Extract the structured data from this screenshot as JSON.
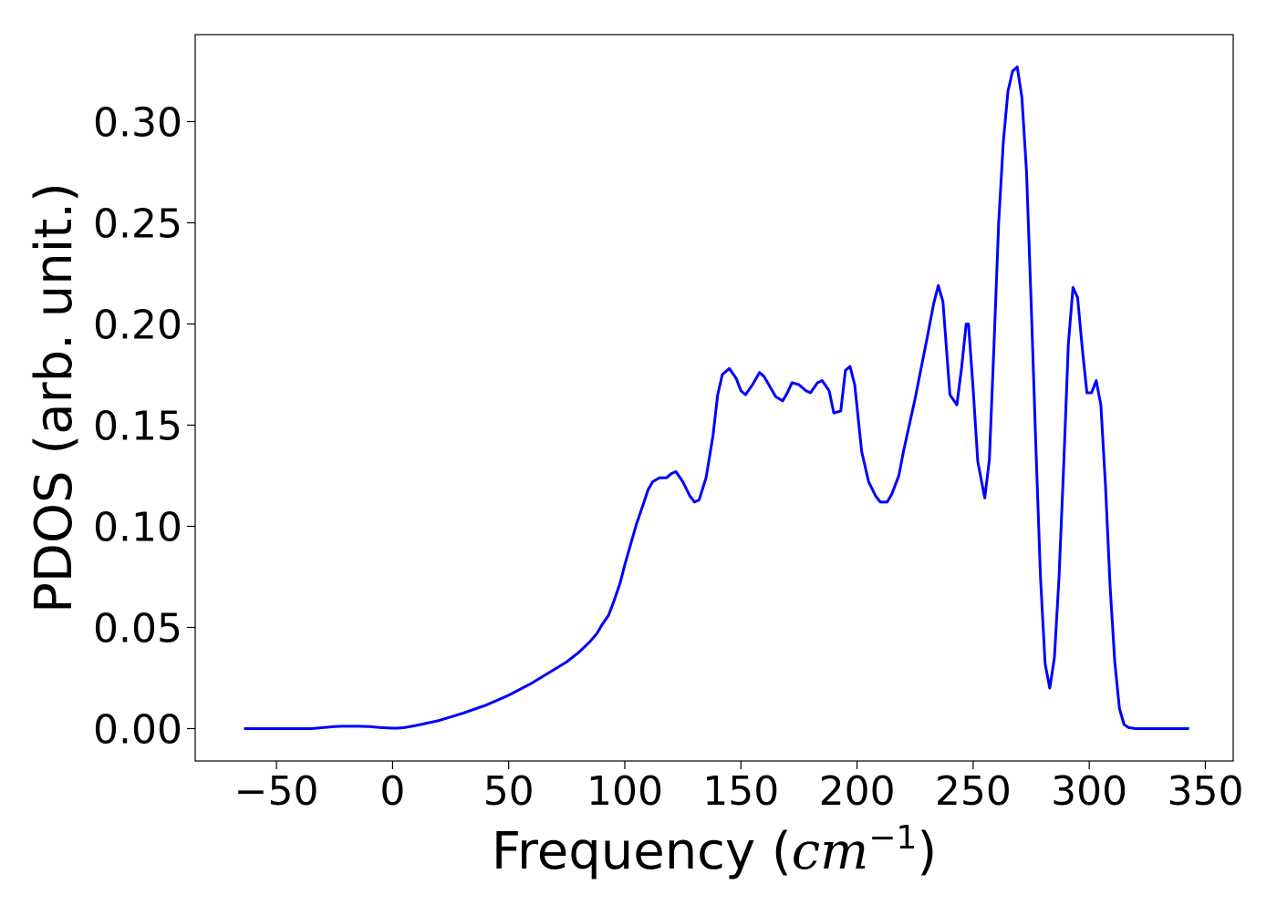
{
  "chart_data": {
    "type": "line",
    "xlabel": "Frequency (cm⁻¹)",
    "xlabel_parts": {
      "prefix": "Frequency (",
      "unit": "cm",
      "exponent": "−1",
      "suffix": ")"
    },
    "ylabel": "PDOS (arb. unit.)",
    "xlim": [
      -85,
      362
    ],
    "ylim": [
      -0.016,
      0.343
    ],
    "x_ticks": [
      -50,
      0,
      50,
      100,
      150,
      200,
      250,
      300,
      350
    ],
    "x_tick_labels": [
      "−50",
      "0",
      "50",
      "100",
      "150",
      "200",
      "250",
      "300",
      "350"
    ],
    "y_ticks": [
      0.0,
      0.05,
      0.1,
      0.15,
      0.2,
      0.25,
      0.3
    ],
    "y_tick_labels": [
      "0.00",
      "0.05",
      "0.10",
      "0.15",
      "0.20",
      "0.25",
      "0.30"
    ],
    "grid": false,
    "legend": "none",
    "series": [
      {
        "color": "#0000ff",
        "x": [
          -64,
          -35,
          -30,
          -25,
          -22,
          -15,
          -10,
          -5,
          0,
          2,
          5,
          10,
          20,
          30,
          40,
          50,
          60,
          70,
          75,
          80,
          85,
          88,
          90,
          93,
          95,
          98,
          100,
          103,
          105,
          108,
          110,
          112,
          115,
          118,
          120,
          122,
          125,
          128,
          130,
          132,
          135,
          138,
          140,
          142,
          145,
          148,
          150,
          152,
          155,
          158,
          160,
          163,
          165,
          168,
          170,
          172,
          175,
          178,
          180,
          183,
          185,
          188,
          190,
          193,
          195,
          197,
          199,
          202,
          205,
          208,
          210,
          213,
          215,
          218,
          220,
          225,
          230,
          233,
          235,
          237,
          240,
          243,
          245,
          247,
          248,
          250,
          252,
          255,
          257,
          259,
          261,
          263,
          265,
          267,
          269,
          271,
          273,
          275,
          277,
          279,
          281,
          283,
          285,
          287,
          289,
          291,
          293,
          295,
          297,
          299,
          301,
          303,
          305,
          307,
          309,
          311,
          313,
          315,
          317,
          320,
          325,
          343
        ],
        "y": [
          0.0,
          0.0,
          0.0005,
          0.001,
          0.0012,
          0.0012,
          0.001,
          0.0005,
          0.0002,
          0.0002,
          0.0005,
          0.0015,
          0.004,
          0.0075,
          0.0115,
          0.0165,
          0.0225,
          0.0295,
          0.033,
          0.0375,
          0.043,
          0.047,
          0.051,
          0.056,
          0.062,
          0.072,
          0.081,
          0.093,
          0.101,
          0.111,
          0.118,
          0.122,
          0.124,
          0.124,
          0.126,
          0.127,
          0.122,
          0.115,
          0.112,
          0.113,
          0.124,
          0.145,
          0.165,
          0.175,
          0.178,
          0.173,
          0.167,
          0.165,
          0.17,
          0.176,
          0.174,
          0.168,
          0.164,
          0.162,
          0.166,
          0.171,
          0.17,
          0.167,
          0.166,
          0.171,
          0.172,
          0.167,
          0.156,
          0.157,
          0.177,
          0.179,
          0.17,
          0.137,
          0.122,
          0.115,
          0.112,
          0.112,
          0.116,
          0.125,
          0.137,
          0.163,
          0.192,
          0.21,
          0.219,
          0.211,
          0.165,
          0.16,
          0.178,
          0.2,
          0.2,
          0.168,
          0.132,
          0.114,
          0.133,
          0.19,
          0.25,
          0.29,
          0.315,
          0.325,
          0.327,
          0.312,
          0.275,
          0.21,
          0.14,
          0.075,
          0.032,
          0.02,
          0.035,
          0.075,
          0.13,
          0.19,
          0.218,
          0.213,
          0.188,
          0.166,
          0.166,
          0.172,
          0.16,
          0.12,
          0.07,
          0.033,
          0.01,
          0.002,
          0.0005,
          0.0,
          0.0,
          0.0
        ]
      }
    ]
  }
}
